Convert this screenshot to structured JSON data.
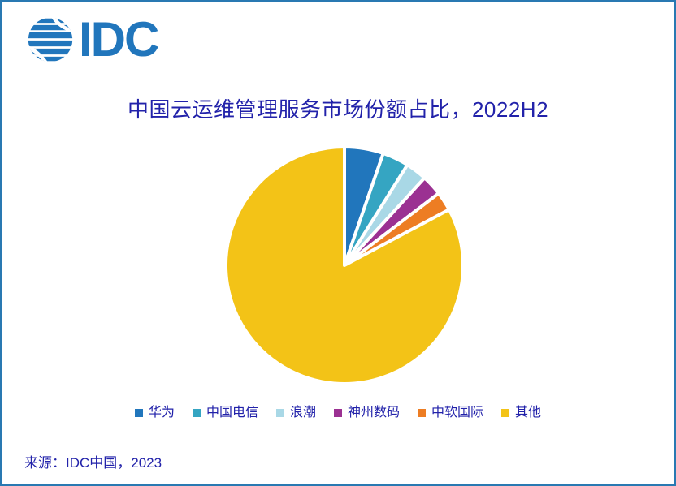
{
  "logo": {
    "text": "IDC"
  },
  "colors": {
    "brand_blue": "#2176BC",
    "border_blue": "#2979B2",
    "navy_text": "#2222AA",
    "background": "#ffffff"
  },
  "chart_data": {
    "type": "pie",
    "title": "中国云运维管理服务市场份额占比，2022H2",
    "direction": "clockwise",
    "start_angle_deg_from_12_oclock": 0,
    "values_unit": "percent_share",
    "legend_position": "bottom",
    "slices": [
      {
        "label": "华为",
        "value": 5.3,
        "color": "#2176BC"
      },
      {
        "label": "中国电信",
        "value": 3.6,
        "color": "#35A5C2"
      },
      {
        "label": "浪潮",
        "value": 2.9,
        "color": "#A9D8E6"
      },
      {
        "label": "神州数码",
        "value": 2.8,
        "color": "#9B3192"
      },
      {
        "label": "中软国际",
        "value": 2.6,
        "color": "#ED7D23"
      },
      {
        "label": "其他",
        "value": 82.8,
        "color": "#F3C317"
      }
    ]
  },
  "footer": {
    "source": "来源：IDC中国，2023"
  }
}
